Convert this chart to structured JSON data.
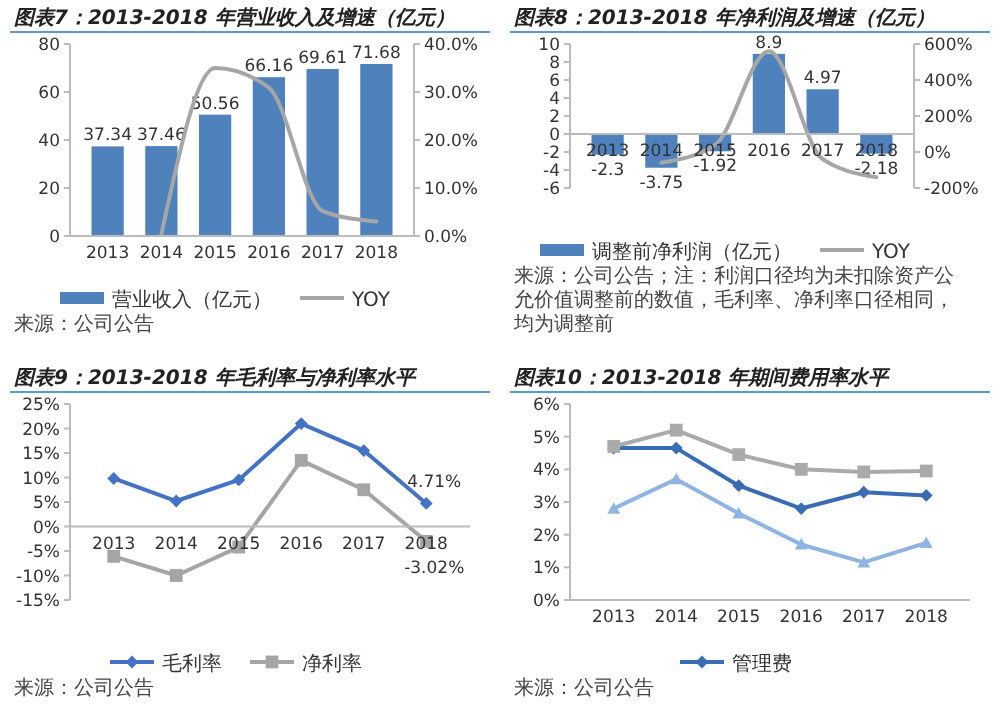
{
  "chart_data": [
    {
      "type": "bar",
      "title": "图表7：2013-2018 年营业收入及增速（亿元）",
      "categories": [
        "2013",
        "2014",
        "2015",
        "2016",
        "2017",
        "2018"
      ],
      "series": [
        {
          "name": "营业收入（亿元）",
          "color": "#4f81bd",
          "values": [
            37.34,
            37.46,
            50.56,
            66.16,
            69.61,
            71.68
          ],
          "value_labels": [
            "37.34",
            "37.46",
            "50.56",
            "66.16",
            "69.61",
            "71.68"
          ]
        },
        {
          "name": "YOY",
          "type": "line",
          "axis": "y2",
          "color": "#a6a6a6",
          "values": [
            null,
            0.3,
            35,
            30.9,
            5.2,
            3.0
          ]
        }
      ],
      "ylim": [
        0,
        80
      ],
      "yticks": [
        0,
        20,
        40,
        60,
        80
      ],
      "y2lim": [
        0,
        40
      ],
      "y2ticks": [
        {
          "value": 0,
          "label": "0.0%"
        },
        {
          "value": 10,
          "label": "10.0%"
        },
        {
          "value": 20,
          "label": "20.0%"
        },
        {
          "value": 30,
          "label": "30.0%"
        },
        {
          "value": 40,
          "label": "40.0%"
        }
      ],
      "legend": "bottom",
      "grid": false,
      "annotations": [
        "来源：公司公告"
      ]
    },
    {
      "type": "bar",
      "title": "图表8：2013-2018 年净利润及增速（亿元）",
      "categories": [
        "2013",
        "2014",
        "2015",
        "2016",
        "2017",
        "2018"
      ],
      "series": [
        {
          "name": "调整前净利润（亿元）",
          "color": "#4f81bd",
          "values": [
            -2.3,
            -3.75,
            -1.92,
            8.9,
            4.97,
            -2.18
          ],
          "value_labels": [
            "-2.3",
            "-3.75",
            "-1.92",
            "8.9",
            "4.97",
            "-2.18"
          ]
        },
        {
          "name": "YOY",
          "type": "line",
          "axis": "y2",
          "color": "#a6a6a6",
          "values": [
            null,
            -60,
            40,
            560,
            -40,
            -140
          ]
        }
      ],
      "ylim": [
        -6,
        10
      ],
      "yticks": [
        -6,
        -4,
        -2,
        0,
        2,
        4,
        6,
        8,
        10
      ],
      "y2lim": [
        -200,
        600
      ],
      "y2ticks": [
        {
          "value": -200,
          "label": "-200%"
        },
        {
          "value": 0,
          "label": "0%"
        },
        {
          "value": 200,
          "label": "200%"
        },
        {
          "value": 400,
          "label": "400%"
        },
        {
          "value": 600,
          "label": "600%"
        }
      ],
      "legend": "bottom",
      "grid": false,
      "annotations": [
        "来源：公司公告；注：利润口径均为未扣除资产公允价值调整前的数值，毛利率、净利率口径相同，均为调整前"
      ]
    },
    {
      "type": "line",
      "title": "图表9：2013-2018 年毛利率与净利率水平",
      "categories": [
        "2013",
        "2014",
        "2015",
        "2016",
        "2017",
        "2018"
      ],
      "series": [
        {
          "name": "毛利率",
          "color": "#4472c4",
          "marker": "diamond",
          "values": [
            9.8,
            5.2,
            9.5,
            21,
            15.5,
            4.71
          ]
        },
        {
          "name": "净利率",
          "color": "#a5a5a5",
          "marker": "square",
          "values": [
            -6.1,
            -10,
            -4.2,
            13.5,
            7.5,
            -3.02
          ]
        }
      ],
      "ylim": [
        -15,
        25
      ],
      "yticks": [
        {
          "value": -15,
          "label": "-15%"
        },
        {
          "value": -10,
          "label": "-10%"
        },
        {
          "value": -5,
          "label": "-5%"
        },
        {
          "value": 0,
          "label": "0%"
        },
        {
          "value": 5,
          "label": "5%"
        },
        {
          "value": 10,
          "label": "10%"
        },
        {
          "value": 15,
          "label": "15%"
        },
        {
          "value": 20,
          "label": "20%"
        },
        {
          "value": 25,
          "label": "25%"
        }
      ],
      "legend": "bottom",
      "grid": false,
      "annotations": [
        {
          "text": "4.71%",
          "x": "2018",
          "y": 4.71
        },
        {
          "text": "-3.02%",
          "x": "2018",
          "y": -3.02
        },
        "来源：公司公告"
      ]
    },
    {
      "type": "line",
      "title": "图表10：2013-2018 年期间费用率水平",
      "categories": [
        "2013",
        "2014",
        "2015",
        "2016",
        "2017",
        "2018"
      ],
      "series": [
        {
          "name": "管理费",
          "color": "#3a6bb5",
          "marker": "diamond",
          "values": [
            4.65,
            4.65,
            3.5,
            2.8,
            3.3,
            3.2
          ]
        },
        {
          "color": "#aaaaaa",
          "marker": "square",
          "values": [
            4.7,
            5.2,
            4.45,
            4.0,
            3.92,
            3.95
          ]
        },
        {
          "color": "#8fb4e3",
          "marker": "triangle",
          "values": [
            2.8,
            3.7,
            2.65,
            1.7,
            1.15,
            1.75
          ]
        }
      ],
      "ylim": [
        0,
        6
      ],
      "yticks": [
        {
          "value": 0,
          "label": "0%"
        },
        {
          "value": 1,
          "label": "1%"
        },
        {
          "value": 2,
          "label": "2%"
        },
        {
          "value": 3,
          "label": "3%"
        },
        {
          "value": 4,
          "label": "4%"
        },
        {
          "value": 5,
          "label": "5%"
        },
        {
          "value": 6,
          "label": "6%"
        }
      ],
      "legend": "bottom",
      "grid": false,
      "annotations": [
        "来源：公司公告"
      ]
    }
  ]
}
